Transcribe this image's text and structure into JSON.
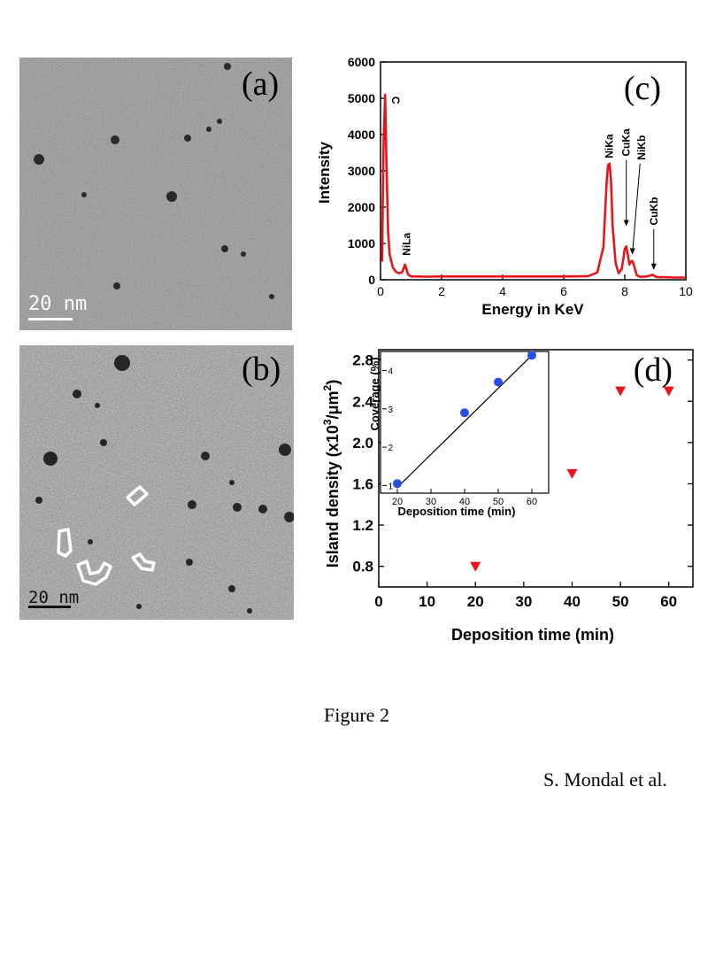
{
  "figure_caption": "Figure 2",
  "authors": "S. Mondal et al.",
  "panels": {
    "a": {
      "label": "(a)",
      "scale_bar": "20 nm"
    },
    "b": {
      "label": "(b)",
      "scale_bar": "20 nm"
    },
    "c": {
      "label": "(c)"
    },
    "d": {
      "label": "(d)"
    }
  },
  "chart_data": [
    {
      "panel": "(c)",
      "type": "line",
      "title": "",
      "xlabel": "Energy in KeV",
      "ylabel": "Intensity",
      "xlim": [
        0,
        10
      ],
      "ylim": [
        0,
        6000
      ],
      "x_ticks": [
        0,
        2,
        4,
        6,
        8,
        10
      ],
      "y_ticks": [
        0,
        1000,
        2000,
        3000,
        4000,
        5000,
        6000
      ],
      "series": [
        {
          "color": "#e8141a",
          "x": [
            0.05,
            0.1,
            0.15,
            0.2,
            0.25,
            0.3,
            0.4,
            0.5,
            0.6,
            0.7,
            0.75,
            0.8,
            0.85,
            0.9,
            1.0,
            1.2,
            1.5,
            2.0,
            3.0,
            4.0,
            5.0,
            6.0,
            6.8,
            7.1,
            7.3,
            7.4,
            7.45,
            7.5,
            7.55,
            7.6,
            7.7,
            7.8,
            7.9,
            8.0,
            8.05,
            8.1,
            8.15,
            8.2,
            8.25,
            8.3,
            8.35,
            8.4,
            8.5,
            8.7,
            8.85,
            8.9,
            8.95,
            9.0,
            9.1,
            9.3,
            9.6,
            10.0
          ],
          "y": [
            500,
            3800,
            5100,
            3000,
            1300,
            700,
            350,
            220,
            180,
            200,
            300,
            420,
            300,
            150,
            90,
            90,
            85,
            90,
            90,
            90,
            90,
            90,
            100,
            200,
            900,
            2600,
            3150,
            3200,
            2700,
            1500,
            450,
            180,
            300,
            850,
            920,
            700,
            420,
            500,
            520,
            400,
            250,
            120,
            80,
            90,
            120,
            140,
            120,
            90,
            70,
            70,
            60,
            60
          ]
        }
      ],
      "annotations": [
        {
          "text": "C",
          "x": 0.15,
          "y": 5100
        },
        {
          "text": "NiLa",
          "x": 0.85,
          "y": 420
        },
        {
          "text": "NiKa",
          "x": 7.5,
          "y": 3200
        },
        {
          "text": "CuKa",
          "x": 8.05,
          "y": 920
        },
        {
          "text": "NiKb",
          "x": 8.25,
          "y": 520
        },
        {
          "text": "CuKb",
          "x": 8.95,
          "y": 140
        }
      ]
    },
    {
      "panel": "(d)",
      "type": "scatter",
      "title": "",
      "xlabel": "Deposition time (min)",
      "ylabel_main": "Island density (x10",
      "ylabel_sup1": "3",
      "ylabel_mid": "/",
      "ylabel_mu": "μm",
      "ylabel_sup2": "2",
      "ylabel_end": ")",
      "xlim": [
        0,
        65
      ],
      "ylim": [
        0.6,
        2.9
      ],
      "x_ticks": [
        0,
        10,
        20,
        30,
        40,
        50,
        60
      ],
      "y_ticks": [
        "0.8",
        "1.2",
        "1.6",
        "2.0",
        "2.4",
        "2.8"
      ],
      "series": [
        {
          "marker": "triangle-down",
          "color": "#e8141a",
          "x": [
            20,
            40,
            50,
            60
          ],
          "y": [
            0.8,
            1.7,
            2.5,
            2.5
          ]
        }
      ],
      "inset": {
        "type": "scatter",
        "xlabel": "Deposition time (min)",
        "ylabel": "Coverage (%)",
        "xlim": [
          15,
          65
        ],
        "ylim": [
          0.8,
          4.5
        ],
        "x_ticks": [
          20,
          30,
          40,
          50,
          60
        ],
        "y_ticks": [
          1,
          2,
          3,
          4
        ],
        "series": [
          {
            "marker": "circle",
            "color": "#2a4fe0",
            "x": [
              20,
              40,
              50,
              60
            ],
            "y": [
              1.05,
              2.9,
              3.7,
              4.4
            ]
          }
        ],
        "fit_line": {
          "color": "#000000",
          "x": [
            20,
            60
          ],
          "y": [
            0.95,
            4.4
          ]
        }
      }
    }
  ],
  "colors": {
    "tem_base": "#8a8a8a",
    "eds_line": "#e8141a",
    "triangles": "#e8141a",
    "inset_points": "#2a4fe0"
  }
}
